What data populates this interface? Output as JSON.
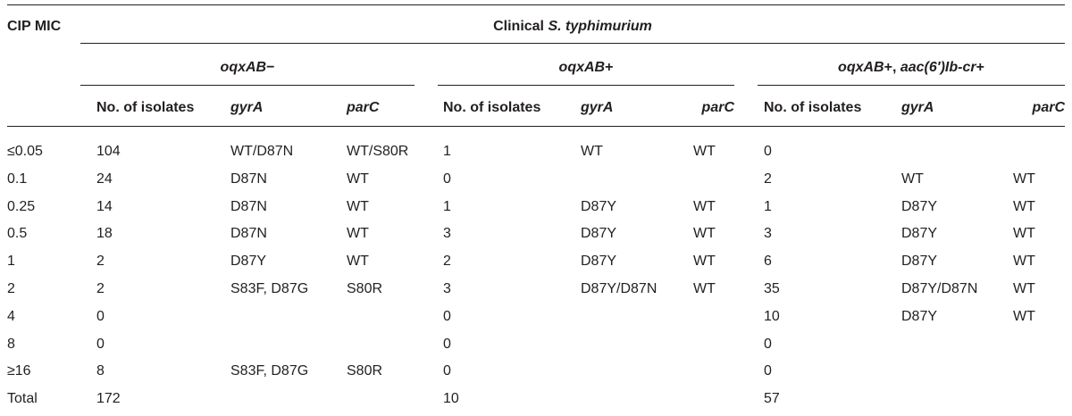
{
  "table": {
    "col_head": "CIP MIC",
    "group_head": {
      "prefix": "Clinical ",
      "species": "S. typhimurium"
    },
    "subgroups": [
      {
        "pre": "oqxAB",
        "post": "−"
      },
      {
        "pre": "oqxAB",
        "post": "+"
      },
      {
        "pre": "oqxAB",
        "mid": "+, ",
        "gene2": "aac(6′)Ib-cr",
        "post": "+"
      }
    ],
    "subheads": {
      "isolates": "No. of isolates",
      "gyrA": "gyrA",
      "parC": "parC"
    },
    "rows": [
      {
        "mic": "≤0.05",
        "c": [
          "104",
          "WT/D87N",
          "WT/S80R",
          "1",
          "WT",
          "WT",
          "0",
          "",
          ""
        ]
      },
      {
        "mic": "0.1",
        "c": [
          "24",
          "D87N",
          "WT",
          "0",
          "",
          "",
          "2",
          "WT",
          "WT"
        ]
      },
      {
        "mic": "0.25",
        "c": [
          "14",
          "D87N",
          "WT",
          "1",
          "D87Y",
          "WT",
          "1",
          "D87Y",
          "WT"
        ]
      },
      {
        "mic": "0.5",
        "c": [
          "18",
          "D87N",
          "WT",
          "3",
          "D87Y",
          "WT",
          "3",
          "D87Y",
          "WT"
        ]
      },
      {
        "mic": "1",
        "c": [
          "2",
          "D87Y",
          "WT",
          "2",
          "D87Y",
          "WT",
          "6",
          "D87Y",
          "WT"
        ]
      },
      {
        "mic": "2",
        "c": [
          "2",
          "S83F, D87G",
          "S80R",
          "3",
          "D87Y/D87N",
          "WT",
          "35",
          "D87Y/D87N",
          "WT"
        ]
      },
      {
        "mic": "4",
        "c": [
          "0",
          "",
          "",
          "0",
          "",
          "",
          "10",
          "D87Y",
          "WT"
        ]
      },
      {
        "mic": "8",
        "c": [
          "0",
          "",
          "",
          "0",
          "",
          "",
          "0",
          "",
          ""
        ]
      },
      {
        "mic": "≥16",
        "c": [
          "8",
          "S83F, D87G",
          "S80R",
          "0",
          "",
          "",
          "0",
          "",
          ""
        ]
      },
      {
        "mic": "Total",
        "c": [
          "172",
          "",
          "",
          "10",
          "",
          "",
          "57",
          "",
          ""
        ]
      }
    ]
  }
}
